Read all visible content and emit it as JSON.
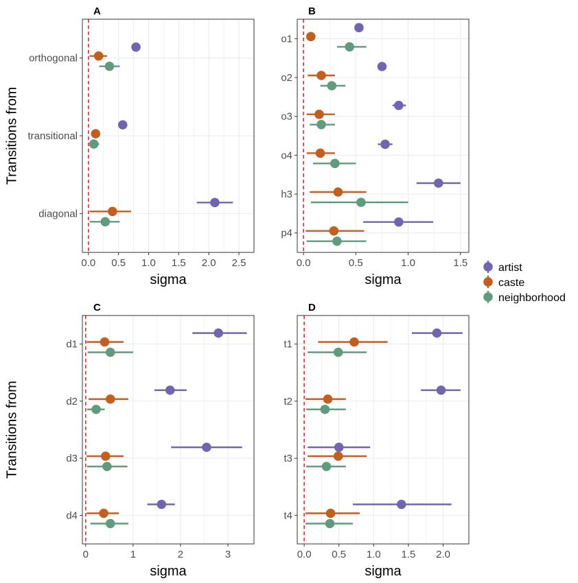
{
  "colors": {
    "artist": "#7066b0",
    "caste": "#c25e1e",
    "neighborhood": "#5f9b7c",
    "refline": "#e41a1c",
    "grid": "#ebebeb"
  },
  "legend": [
    {
      "key": "artist",
      "label": "artist"
    },
    {
      "key": "caste",
      "label": "caste"
    },
    {
      "key": "neighborhood",
      "label": "neighborhood"
    }
  ],
  "chart_data": [
    {
      "id": "A",
      "letter": "A",
      "type": "scatter",
      "xlabel": "sigma",
      "ylabel": "Transitions from",
      "xlim": [
        -0.1,
        2.75
      ],
      "xticks": [
        0.0,
        0.5,
        1.0,
        1.5,
        2.0,
        2.5
      ],
      "xtick_labels": [
        "0.0",
        "0.5",
        "1.0",
        "1.5",
        "2.0",
        "2.5"
      ],
      "categories": [
        "orthogonal",
        "transitional",
        "diagonal"
      ],
      "points": [
        {
          "cat": "orthogonal",
          "series": "artist",
          "x": 0.79,
          "lo": 0.73,
          "hi": 0.85
        },
        {
          "cat": "orthogonal",
          "series": "caste",
          "x": 0.17,
          "lo": 0.02,
          "hi": 0.31
        },
        {
          "cat": "orthogonal",
          "series": "neighborhood",
          "x": 0.35,
          "lo": 0.18,
          "hi": 0.52
        },
        {
          "cat": "transitional",
          "series": "artist",
          "x": 0.57,
          "lo": 0.51,
          "hi": 0.63
        },
        {
          "cat": "transitional",
          "series": "caste",
          "x": 0.12,
          "lo": 0.06,
          "hi": 0.18
        },
        {
          "cat": "transitional",
          "series": "neighborhood",
          "x": 0.09,
          "lo": 0.02,
          "hi": 0.18
        },
        {
          "cat": "diagonal",
          "series": "artist",
          "x": 2.1,
          "lo": 1.8,
          "hi": 2.4
        },
        {
          "cat": "diagonal",
          "series": "caste",
          "x": 0.4,
          "lo": 0.02,
          "hi": 0.71
        },
        {
          "cat": "diagonal",
          "series": "neighborhood",
          "x": 0.28,
          "lo": 0.02,
          "hi": 0.52
        }
      ]
    },
    {
      "id": "B",
      "letter": "B",
      "type": "scatter",
      "xlabel": "sigma",
      "ylabel": "",
      "xlim": [
        -0.06,
        1.58
      ],
      "xticks": [
        0.0,
        0.5,
        1.0,
        1.5
      ],
      "xtick_labels": [
        "0.0",
        "0.5",
        "1.0",
        "1.5"
      ],
      "categories": [
        "o1",
        "o2",
        "o3",
        "o4",
        "h3",
        "p4"
      ],
      "points": [
        {
          "cat": "o1",
          "series": "artist",
          "x": 0.53,
          "lo": 0.5,
          "hi": 0.56
        },
        {
          "cat": "o1",
          "series": "caste",
          "x": 0.07,
          "lo": 0.04,
          "hi": 0.1
        },
        {
          "cat": "o1",
          "series": "neighborhood",
          "x": 0.44,
          "lo": 0.32,
          "hi": 0.6
        },
        {
          "cat": "o2",
          "series": "artist",
          "x": 0.75,
          "lo": 0.72,
          "hi": 0.78
        },
        {
          "cat": "o2",
          "series": "caste",
          "x": 0.17,
          "lo": 0.04,
          "hi": 0.3
        },
        {
          "cat": "o2",
          "series": "neighborhood",
          "x": 0.27,
          "lo": 0.16,
          "hi": 0.4
        },
        {
          "cat": "o3",
          "series": "artist",
          "x": 0.91,
          "lo": 0.85,
          "hi": 0.98
        },
        {
          "cat": "o3",
          "series": "caste",
          "x": 0.15,
          "lo": 0.03,
          "hi": 0.3
        },
        {
          "cat": "o3",
          "series": "neighborhood",
          "x": 0.17,
          "lo": 0.06,
          "hi": 0.3
        },
        {
          "cat": "o4",
          "series": "artist",
          "x": 0.78,
          "lo": 0.71,
          "hi": 0.85
        },
        {
          "cat": "o4",
          "series": "caste",
          "x": 0.16,
          "lo": 0.03,
          "hi": 0.3
        },
        {
          "cat": "o4",
          "series": "neighborhood",
          "x": 0.3,
          "lo": 0.09,
          "hi": 0.5
        },
        {
          "cat": "h3",
          "series": "artist",
          "x": 1.29,
          "lo": 1.08,
          "hi": 1.5
        },
        {
          "cat": "h3",
          "series": "caste",
          "x": 0.33,
          "lo": 0.06,
          "hi": 0.6
        },
        {
          "cat": "h3",
          "series": "neighborhood",
          "x": 0.55,
          "lo": 0.07,
          "hi": 1.0
        },
        {
          "cat": "p4",
          "series": "artist",
          "x": 0.91,
          "lo": 0.57,
          "hi": 1.24
        },
        {
          "cat": "p4",
          "series": "caste",
          "x": 0.29,
          "lo": 0.02,
          "hi": 0.58
        },
        {
          "cat": "p4",
          "series": "neighborhood",
          "x": 0.32,
          "lo": 0.03,
          "hi": 0.6
        }
      ]
    },
    {
      "id": "C",
      "letter": "C",
      "type": "scatter",
      "xlabel": "sigma",
      "ylabel": "Transitions from",
      "xlim": [
        -0.07,
        3.55
      ],
      "xticks": [
        0,
        1,
        2,
        3
      ],
      "xtick_labels": [
        "0",
        "1",
        "2",
        "3"
      ],
      "categories": [
        "d1",
        "d2",
        "d3",
        "d4"
      ],
      "points": [
        {
          "cat": "d1",
          "series": "artist",
          "x": 2.8,
          "lo": 2.25,
          "hi": 3.4
        },
        {
          "cat": "d1",
          "series": "caste",
          "x": 0.4,
          "lo": 0.02,
          "hi": 0.8
        },
        {
          "cat": "d1",
          "series": "neighborhood",
          "x": 0.52,
          "lo": 0.04,
          "hi": 1.0
        },
        {
          "cat": "d2",
          "series": "artist",
          "x": 1.78,
          "lo": 1.45,
          "hi": 2.13
        },
        {
          "cat": "d2",
          "series": "caste",
          "x": 0.52,
          "lo": 0.06,
          "hi": 0.9
        },
        {
          "cat": "d2",
          "series": "neighborhood",
          "x": 0.22,
          "lo": 0.03,
          "hi": 0.4
        },
        {
          "cat": "d3",
          "series": "artist",
          "x": 2.55,
          "lo": 1.8,
          "hi": 3.3
        },
        {
          "cat": "d3",
          "series": "caste",
          "x": 0.42,
          "lo": 0.02,
          "hi": 0.8
        },
        {
          "cat": "d3",
          "series": "neighborhood",
          "x": 0.45,
          "lo": 0.03,
          "hi": 0.88
        },
        {
          "cat": "d4",
          "series": "artist",
          "x": 1.6,
          "lo": 1.3,
          "hi": 1.88
        },
        {
          "cat": "d4",
          "series": "caste",
          "x": 0.38,
          "lo": 0.02,
          "hi": 0.7
        },
        {
          "cat": "d4",
          "series": "neighborhood",
          "x": 0.52,
          "lo": 0.1,
          "hi": 0.9
        }
      ]
    },
    {
      "id": "D",
      "letter": "D",
      "type": "scatter",
      "xlabel": "sigma",
      "ylabel": "",
      "xlim": [
        -0.1,
        2.37
      ],
      "xticks": [
        0.0,
        0.5,
        1.0,
        1.5,
        2.0
      ],
      "xtick_labels": [
        "0.0",
        "0.5",
        "1.0",
        "1.5",
        "2.0"
      ],
      "categories": [
        "t1",
        "t2",
        "t3",
        "t4"
      ],
      "points": [
        {
          "cat": "t1",
          "series": "artist",
          "x": 1.91,
          "lo": 1.55,
          "hi": 2.28
        },
        {
          "cat": "t1",
          "series": "caste",
          "x": 0.72,
          "lo": 0.2,
          "hi": 1.2
        },
        {
          "cat": "t1",
          "series": "neighborhood",
          "x": 0.49,
          "lo": 0.05,
          "hi": 0.9
        },
        {
          "cat": "t2",
          "series": "artist",
          "x": 1.97,
          "lo": 1.68,
          "hi": 2.25
        },
        {
          "cat": "t2",
          "series": "caste",
          "x": 0.34,
          "lo": 0.02,
          "hi": 0.6
        },
        {
          "cat": "t2",
          "series": "neighborhood",
          "x": 0.3,
          "lo": 0.03,
          "hi": 0.6
        },
        {
          "cat": "t3",
          "series": "artist",
          "x": 0.5,
          "lo": 0.05,
          "hi": 0.95
        },
        {
          "cat": "t3",
          "series": "caste",
          "x": 0.49,
          "lo": 0.05,
          "hi": 0.9
        },
        {
          "cat": "t3",
          "series": "neighborhood",
          "x": 0.32,
          "lo": 0.03,
          "hi": 0.6
        },
        {
          "cat": "t4",
          "series": "artist",
          "x": 1.4,
          "lo": 0.7,
          "hi": 2.12
        },
        {
          "cat": "t4",
          "series": "caste",
          "x": 0.38,
          "lo": 0.02,
          "hi": 0.8
        },
        {
          "cat": "t4",
          "series": "neighborhood",
          "x": 0.37,
          "lo": 0.02,
          "hi": 0.7
        }
      ]
    }
  ]
}
